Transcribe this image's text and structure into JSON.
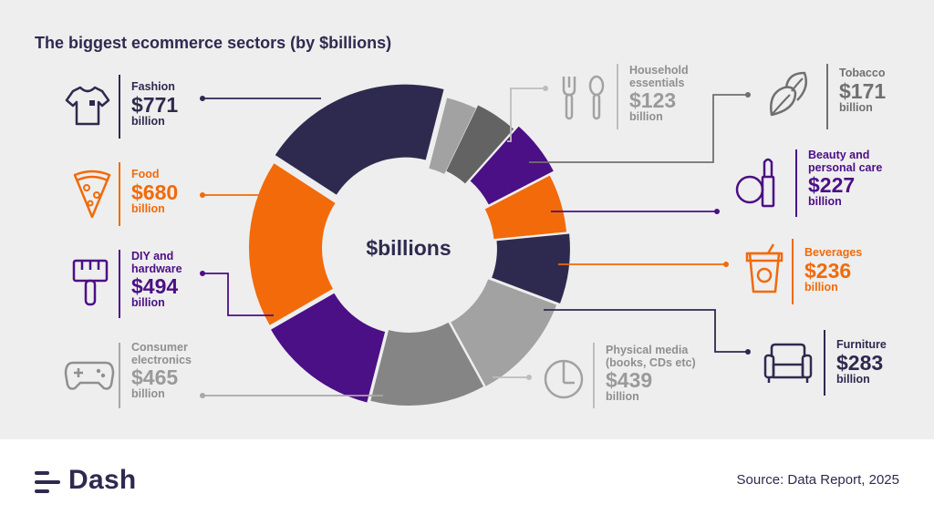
{
  "title": "The biggest ecommerce sectors (by $billions)",
  "colors": {
    "navy": "#2e2a4f",
    "orange": "#f26a0a",
    "purple": "#4b0f86",
    "gray_dark": "#636363",
    "gray_mid": "#858585",
    "gray_light": "#a2a2a2",
    "background": "#eeeeee"
  },
  "chart_data": {
    "type": "pie",
    "variant": "donut",
    "center_label": "$billions",
    "unit": "billion",
    "slices": [
      {
        "key": "fashion",
        "label": "Fashion",
        "value": 771,
        "value_text": "$771",
        "unit": "billion",
        "color": "#2e2a4f",
        "icon": "tshirt-icon"
      },
      {
        "key": "household",
        "label": "Household essentials",
        "value": 123,
        "value_text": "$123",
        "unit": "billion",
        "color": "#a2a2a2",
        "icon": "cutlery-icon"
      },
      {
        "key": "tobacco",
        "label": "Tobacco",
        "value": 171,
        "value_text": "$171",
        "unit": "billion",
        "color": "#636363",
        "icon": "leaf-icon"
      },
      {
        "key": "beauty",
        "label": "Beauty and personal care",
        "value": 227,
        "value_text": "$227",
        "unit": "billion",
        "color": "#4b0f86",
        "icon": "cosmetics-icon"
      },
      {
        "key": "beverages",
        "label": "Beverages",
        "value": 236,
        "value_text": "$236",
        "unit": "billion",
        "color": "#f26a0a",
        "icon": "cup-icon"
      },
      {
        "key": "furniture",
        "label": "Furniture",
        "value": 283,
        "value_text": "$283",
        "unit": "billion",
        "color": "#2e2a4f",
        "icon": "armchair-icon"
      },
      {
        "key": "media",
        "label": "Physical media (books, CDs etc)",
        "value": 439,
        "value_text": "$439",
        "unit": "billion",
        "color": "#a2a2a2",
        "icon": "disc-icon"
      },
      {
        "key": "electronics",
        "label": "Consumer electronics",
        "value": 465,
        "value_text": "$465",
        "unit": "billion",
        "color": "#858585",
        "icon": "gamepad-icon"
      },
      {
        "key": "diy",
        "label": "DIY and hardware",
        "value": 494,
        "value_text": "$494",
        "unit": "billion",
        "color": "#4b0f86",
        "icon": "paintbrush-icon"
      },
      {
        "key": "food",
        "label": "Food",
        "value": 680,
        "value_text": "$680",
        "unit": "billion",
        "color": "#f26a0a",
        "icon": "pizza-icon"
      }
    ]
  },
  "footer": {
    "brand": "Dash",
    "source": "Source: Data Report, 2025"
  }
}
